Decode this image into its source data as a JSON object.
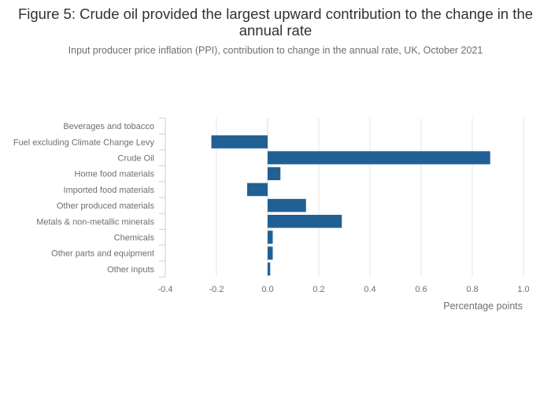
{
  "chart_data": {
    "type": "bar",
    "orientation": "horizontal",
    "title": "Figure 5: Crude oil provided the largest upward contribution to the change in the annual rate",
    "subtitle": "Input producer price inflation (PPI), contribution to change in the annual rate, UK, October 2021",
    "xlabel": "Percentage points",
    "ylabel": "",
    "categories": [
      "Beverages and tobacco",
      "Fuel excluding Climate Change Levy",
      "Crude Oil",
      "Home food materials",
      "Imported food materials",
      "Other produced materials",
      "Metals & non-metallic minerals",
      "Chemicals",
      "Other parts and equipment",
      "Other inputs"
    ],
    "values": [
      0.0,
      -0.22,
      0.87,
      0.05,
      -0.08,
      0.15,
      0.29,
      0.02,
      0.02,
      0.01
    ],
    "xlim": [
      -0.4,
      1.0
    ],
    "xticks": [
      -0.4,
      -0.2,
      0.0,
      0.2,
      0.4,
      0.6,
      0.8,
      1.0
    ],
    "xtick_labels": [
      "-0.4",
      "-0.2",
      "0.0",
      "0.2",
      "0.4",
      "0.6",
      "0.8",
      "1.0"
    ],
    "grid": true,
    "legend": "none",
    "colors": {
      "bar": "#206095",
      "grid": "#e5e5e5",
      "axis": "#d0c8ec"
    }
  }
}
